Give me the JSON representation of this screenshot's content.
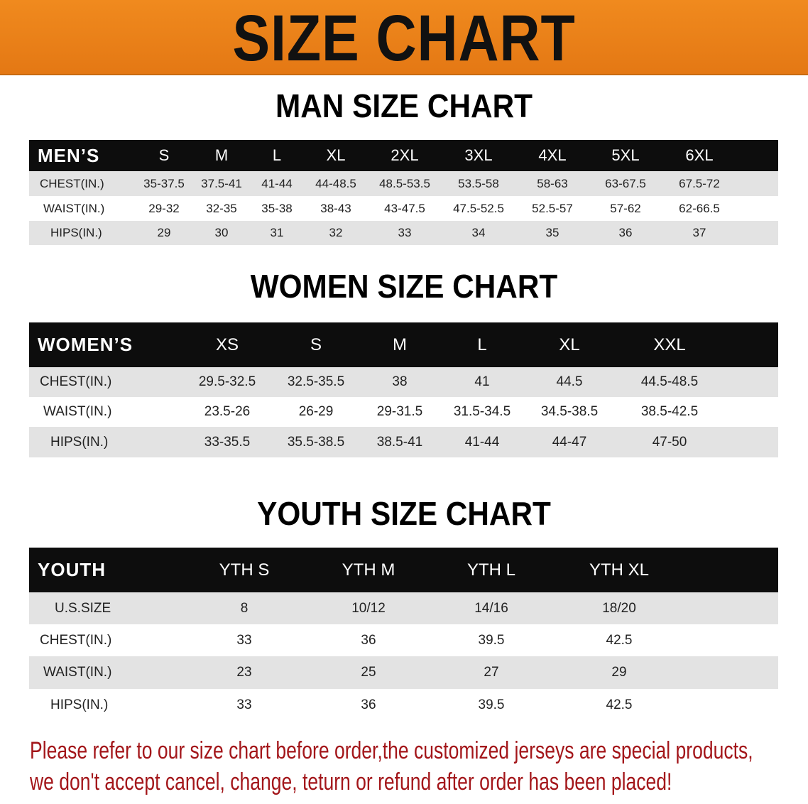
{
  "banner": {
    "title": "SIZE CHART",
    "color": "#ec8219"
  },
  "men": {
    "title": "MAN SIZE CHART",
    "header": "MEN’S",
    "sizes": [
      "S",
      "M",
      "L",
      "XL",
      "2XL",
      "3XL",
      "4XL",
      "5XL",
      "6XL"
    ],
    "rows": [
      {
        "label": "CHEST(IN.)",
        "values": [
          "35-37.5",
          "37.5-41",
          "41-44",
          "44-48.5",
          "48.5-53.5",
          "53.5-58",
          "58-63",
          "63-67.5",
          "67.5-72"
        ]
      },
      {
        "label": "WAIST(IN.)",
        "values": [
          "29-32",
          "32-35",
          "35-38",
          "38-43",
          "43-47.5",
          "47.5-52.5",
          "52.5-57",
          "57-62",
          "62-66.5"
        ]
      },
      {
        "label": "HIPS(IN.)",
        "values": [
          "29",
          "30",
          "31",
          "32",
          "33",
          "34",
          "35",
          "36",
          "37"
        ]
      }
    ]
  },
  "women": {
    "title": "WOMEN SIZE CHART",
    "header": "WOMEN’S",
    "sizes": [
      "XS",
      "S",
      "M",
      "L",
      "XL",
      "XXL"
    ],
    "rows": [
      {
        "label": "CHEST(IN.)",
        "values": [
          "29.5-32.5",
          "32.5-35.5",
          "38",
          "41",
          "44.5",
          "44.5-48.5"
        ]
      },
      {
        "label": "WAIST(IN.)",
        "values": [
          "23.5-26",
          "26-29",
          "29-31.5",
          "31.5-34.5",
          "34.5-38.5",
          "38.5-42.5"
        ]
      },
      {
        "label": "HIPS(IN.)",
        "values": [
          "33-35.5",
          "35.5-38.5",
          "38.5-41",
          "41-44",
          "44-47",
          "47-50"
        ]
      }
    ]
  },
  "youth": {
    "title": "YOUTH SIZE CHART",
    "header": "YOUTH",
    "sizes": [
      "YTH S",
      "YTH M",
      "YTH L",
      "YTH XL"
    ],
    "rows": [
      {
        "label": "U.S.SIZE",
        "values": [
          "8",
          "10/12",
          "14/16",
          "18/20"
        ]
      },
      {
        "label": "CHEST(IN.)",
        "values": [
          "33",
          "36",
          "39.5",
          "42.5"
        ]
      },
      {
        "label": "WAIST(IN.)",
        "values": [
          "23",
          "25",
          "27",
          "29"
        ]
      },
      {
        "label": "HIPS(IN.)",
        "values": [
          "33",
          "36",
          "39.5",
          "42.5"
        ]
      }
    ]
  },
  "notice": {
    "line1": "Please refer to our size chart before order,the customized jerseys are special products,",
    "line2": "we don't accept cancel, change, teturn or refund after order has been placed!",
    "color": "#a3161a"
  }
}
